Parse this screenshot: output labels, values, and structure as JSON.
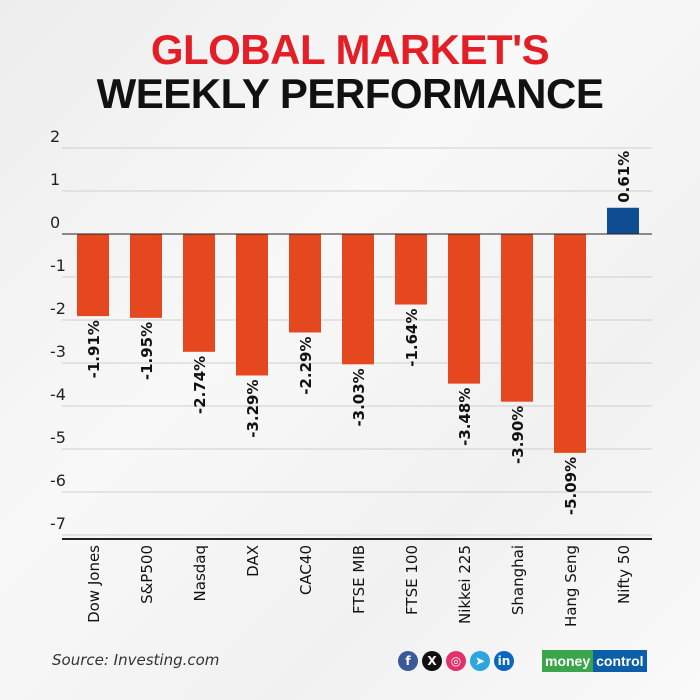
{
  "header": {
    "line1": "GLOBAL MARKET'S",
    "line2": "WEEKLY PERFORMANCE"
  },
  "chart_data": {
    "type": "bar",
    "categories": [
      "Dow Jones",
      "S&P500",
      "Nasdaq",
      "DAX",
      "CAC40",
      "FTSE MIB",
      "FTSE 100",
      "Nikkei 225",
      "Shanghai",
      "Hang Seng",
      "Nifty 50"
    ],
    "values": [
      -1.91,
      -1.95,
      -2.74,
      -3.29,
      -2.29,
      -3.03,
      -1.64,
      -3.48,
      -3.9,
      -5.09,
      0.61
    ],
    "data_labels": [
      "-1.91%",
      "-1.95%",
      "-2.74%",
      "-3.29%",
      "-2.29%",
      "-3.03%",
      "-1.64%",
      "-3.48%",
      "-3.90%",
      "-5.09%",
      "0.61%"
    ],
    "yticks": [
      "2",
      "1",
      "0",
      "-1",
      "-2",
      "-3",
      "-4",
      "-5",
      "-6",
      "-7"
    ],
    "ylim": [
      -7,
      2
    ],
    "grid": true,
    "colors": {
      "negative": "#e5471f",
      "positive": "#0e4d92"
    }
  },
  "footer": {
    "source": "Source: Investing.com",
    "brand_a": "money",
    "brand_b": "control",
    "social": [
      {
        "icon": "facebook-icon",
        "glyph": "f",
        "color": "#3b5998"
      },
      {
        "icon": "x-icon",
        "glyph": "X",
        "color": "#111111"
      },
      {
        "icon": "instagram-icon",
        "glyph": "◎",
        "color": "#e1306c"
      },
      {
        "icon": "telegram-icon",
        "glyph": "➤",
        "color": "#2ca5e0"
      },
      {
        "icon": "linkedin-icon",
        "glyph": "in",
        "color": "#0a66c2"
      }
    ]
  }
}
